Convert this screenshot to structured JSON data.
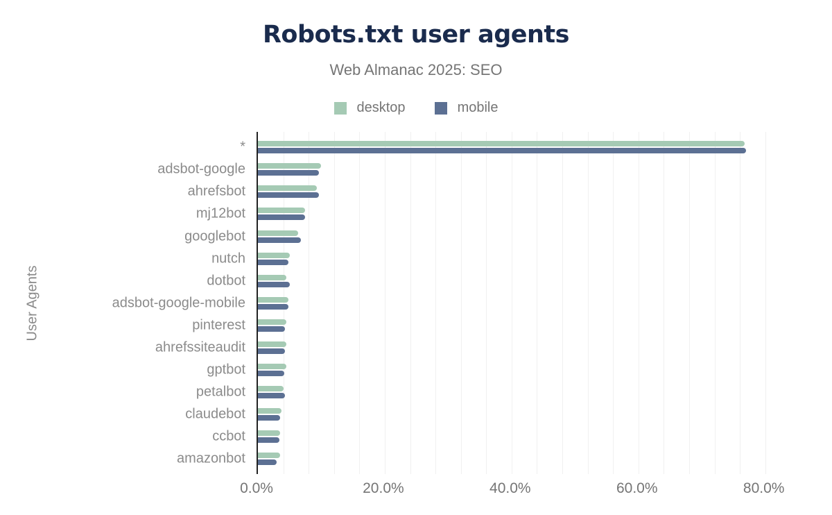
{
  "chart": {
    "title": "Robots.txt user agents",
    "subtitle": "Web Almanac 2025: SEO"
  },
  "legend": {
    "items": [
      {
        "label": "desktop",
        "color": "#a5cab4"
      },
      {
        "label": "mobile",
        "color": "#5c7093"
      }
    ]
  },
  "chart_data": {
    "type": "bar",
    "orientation": "horizontal",
    "title": "Robots.txt user agents",
    "subtitle": "Web Almanac 2025: SEO",
    "xlabel": "",
    "ylabel": "User Agents",
    "categories": [
      "*",
      "adsbot-google",
      "ahrefsbot",
      "mj12bot",
      "googlebot",
      "nutch",
      "dotbot",
      "adsbot-google-mobile",
      "pinterest",
      "ahrefssiteaudit",
      "gptbot",
      "petalbot",
      "claudebot",
      "ccbot",
      "amazonbot"
    ],
    "series": [
      {
        "name": "desktop",
        "color": "#a5cab4",
        "values": [
          76.8,
          9.9,
          9.3,
          7.4,
          6.3,
          5.0,
          4.5,
          4.8,
          4.5,
          4.5,
          4.5,
          4.1,
          3.7,
          3.5,
          3.5
        ]
      },
      {
        "name": "mobile",
        "color": "#5c7093",
        "values": [
          77.0,
          9.6,
          9.6,
          7.4,
          6.8,
          4.8,
          5.0,
          4.8,
          4.3,
          4.3,
          4.2,
          4.3,
          3.5,
          3.4,
          3.0
        ]
      }
    ],
    "x_ticks": [
      "0.0%",
      "20.0%",
      "40.0%",
      "60.0%",
      "80.0%"
    ],
    "x_tick_values": [
      0,
      20,
      40,
      60,
      80
    ],
    "xlim": [
      0,
      90.7
    ],
    "grid": "vertical minor gridlines every 4% from 4% to 80%",
    "legend_position": "top",
    "value_unit": "percent"
  },
  "colors": {
    "background": "#ffffff",
    "title": "#1a2b4d",
    "subtitle": "#757575",
    "axis_line": "#222222",
    "gridline": "#f0f0f0",
    "category_label": "#8b8b8b",
    "tick_label": "#757575",
    "y_axis_title": "#8a8a8a"
  }
}
